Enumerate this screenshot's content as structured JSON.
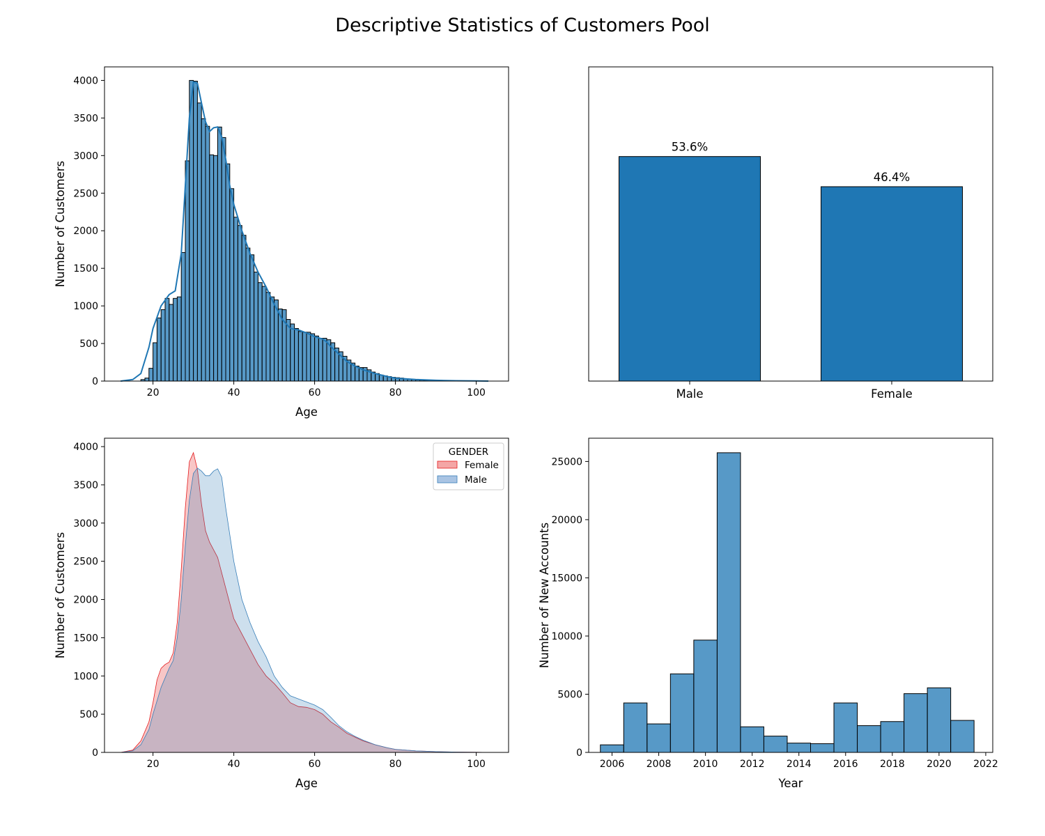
{
  "figure": {
    "title": "Descriptive Statistics of Customers Pool"
  },
  "chart_data": [
    {
      "type": "histogram",
      "id": "age-histogram",
      "xlabel": "Age",
      "ylabel": "Number of Customers",
      "xlim": [
        8,
        108
      ],
      "ylim": [
        0,
        4180
      ],
      "xticks": [
        20,
        40,
        60,
        80,
        100
      ],
      "yticks": [
        0,
        500,
        1000,
        1500,
        2000,
        2500,
        3000,
        3500,
        4000
      ],
      "bin_start": 17,
      "bin_width": 1,
      "bin_counts": [
        20,
        40,
        170,
        510,
        840,
        950,
        1100,
        1020,
        1100,
        1120,
        1710,
        2930,
        4000,
        3990,
        3700,
        3490,
        3390,
        3010,
        3000,
        3380,
        3240,
        2890,
        2560,
        2180,
        2070,
        1940,
        1770,
        1680,
        1450,
        1310,
        1260,
        1180,
        1120,
        1080,
        960,
        950,
        820,
        760,
        700,
        660,
        650,
        650,
        630,
        600,
        570,
        570,
        550,
        510,
        440,
        390,
        330,
        280,
        240,
        200,
        180,
        180,
        150,
        120,
        100,
        80,
        70,
        60,
        50,
        45,
        40,
        30,
        25,
        20,
        15,
        12,
        10,
        8,
        6,
        5,
        4,
        3,
        2,
        2,
        1,
        1,
        1,
        1,
        1,
        1
      ],
      "kde": {
        "x": [
          12,
          15,
          17,
          19,
          20,
          22,
          24,
          25.5,
          27,
          28,
          29,
          30,
          31,
          32,
          33,
          34,
          35,
          36,
          37,
          38,
          39,
          40,
          42,
          44,
          46,
          48,
          50,
          52,
          54,
          56,
          58,
          60,
          62,
          63,
          64,
          66,
          68,
          70,
          72,
          75,
          78,
          80,
          85,
          90,
          95,
          100,
          103
        ],
        "y": [
          0,
          20,
          100,
          450,
          700,
          1000,
          1150,
          1200,
          1700,
          2600,
          3500,
          3980,
          3960,
          3700,
          3450,
          3320,
          3370,
          3380,
          3250,
          2950,
          2600,
          2350,
          2000,
          1700,
          1450,
          1250,
          1020,
          820,
          700,
          680,
          640,
          590,
          560,
          520,
          460,
          360,
          260,
          200,
          150,
          100,
          60,
          40,
          20,
          10,
          5,
          2,
          0
        ]
      },
      "color": "#1f77b4"
    },
    {
      "type": "bar",
      "id": "gender-bar",
      "categories": [
        "Male",
        "Female"
      ],
      "values": [
        53.6,
        46.4
      ],
      "value_labels": [
        "53.6%",
        "46.4%"
      ],
      "ylim": [
        0,
        75
      ],
      "color": "#1f77b4"
    },
    {
      "type": "area",
      "id": "age-by-gender-kde",
      "xlabel": "Age",
      "ylabel": "Number of Customers",
      "xlim": [
        8,
        108
      ],
      "ylim": [
        0,
        4110
      ],
      "xticks": [
        20,
        40,
        60,
        80,
        100
      ],
      "yticks": [
        0,
        500,
        1000,
        1500,
        2000,
        2500,
        3000,
        3500,
        4000
      ],
      "legend": {
        "title": "GENDER",
        "position": "top-right"
      },
      "series": [
        {
          "name": "Female",
          "color": "#e41a1c",
          "x": [
            12,
            15,
            17,
            19,
            20,
            21,
            22,
            23,
            24,
            25,
            26,
            27,
            28,
            29,
            30,
            31,
            32,
            33,
            34,
            35,
            36,
            38,
            40,
            42,
            44,
            46,
            48,
            50,
            52,
            54,
            56,
            58,
            60,
            62,
            64,
            66,
            68,
            70,
            72,
            75,
            78,
            80,
            85,
            90,
            95,
            100,
            103
          ],
          "y": [
            0,
            30,
            150,
            400,
            650,
            950,
            1100,
            1150,
            1180,
            1300,
            1700,
            2400,
            3200,
            3800,
            3920,
            3700,
            3250,
            2900,
            2750,
            2650,
            2550,
            2150,
            1750,
            1550,
            1350,
            1150,
            1000,
            900,
            780,
            650,
            600,
            590,
            560,
            500,
            400,
            330,
            250,
            200,
            150,
            100,
            60,
            40,
            20,
            10,
            5,
            2,
            0
          ]
        },
        {
          "name": "Male",
          "color": "#377eb8",
          "x": [
            12,
            15,
            17,
            19,
            20,
            22,
            24,
            25,
            26,
            27,
            28,
            29,
            30,
            31,
            32,
            33,
            34,
            35,
            36,
            37,
            38,
            40,
            42,
            44,
            46,
            48,
            50,
            52,
            54,
            56,
            58,
            60,
            62,
            64,
            66,
            68,
            70,
            72,
            75,
            78,
            80,
            85,
            90,
            95,
            100,
            103
          ],
          "y": [
            0,
            20,
            100,
            300,
            500,
            850,
            1100,
            1200,
            1500,
            2000,
            2700,
            3300,
            3650,
            3720,
            3680,
            3620,
            3620,
            3680,
            3710,
            3600,
            3200,
            2500,
            2000,
            1700,
            1450,
            1250,
            1000,
            850,
            740,
            700,
            660,
            620,
            560,
            460,
            350,
            270,
            210,
            160,
            100,
            60,
            40,
            20,
            10,
            5,
            2,
            0
          ]
        }
      ]
    },
    {
      "type": "histogram",
      "id": "new-accounts-histogram",
      "xlabel": "Year",
      "ylabel": "Number of New Accounts",
      "xlim": [
        2005.0,
        2022.3
      ],
      "ylim": [
        0,
        27000
      ],
      "xticks": [
        2006,
        2008,
        2010,
        2012,
        2014,
        2016,
        2018,
        2020,
        2022
      ],
      "yticks": [
        0,
        5000,
        10000,
        15000,
        20000,
        25000
      ],
      "bin_start": 2005.5,
      "bin_width": 1,
      "bin_counts": [
        650,
        4250,
        2450,
        6750,
        9650,
        25750,
        2200,
        1400,
        800,
        750,
        4250,
        2300,
        2650,
        5050,
        5550,
        2750
      ],
      "color": "#1f77b4"
    }
  ]
}
